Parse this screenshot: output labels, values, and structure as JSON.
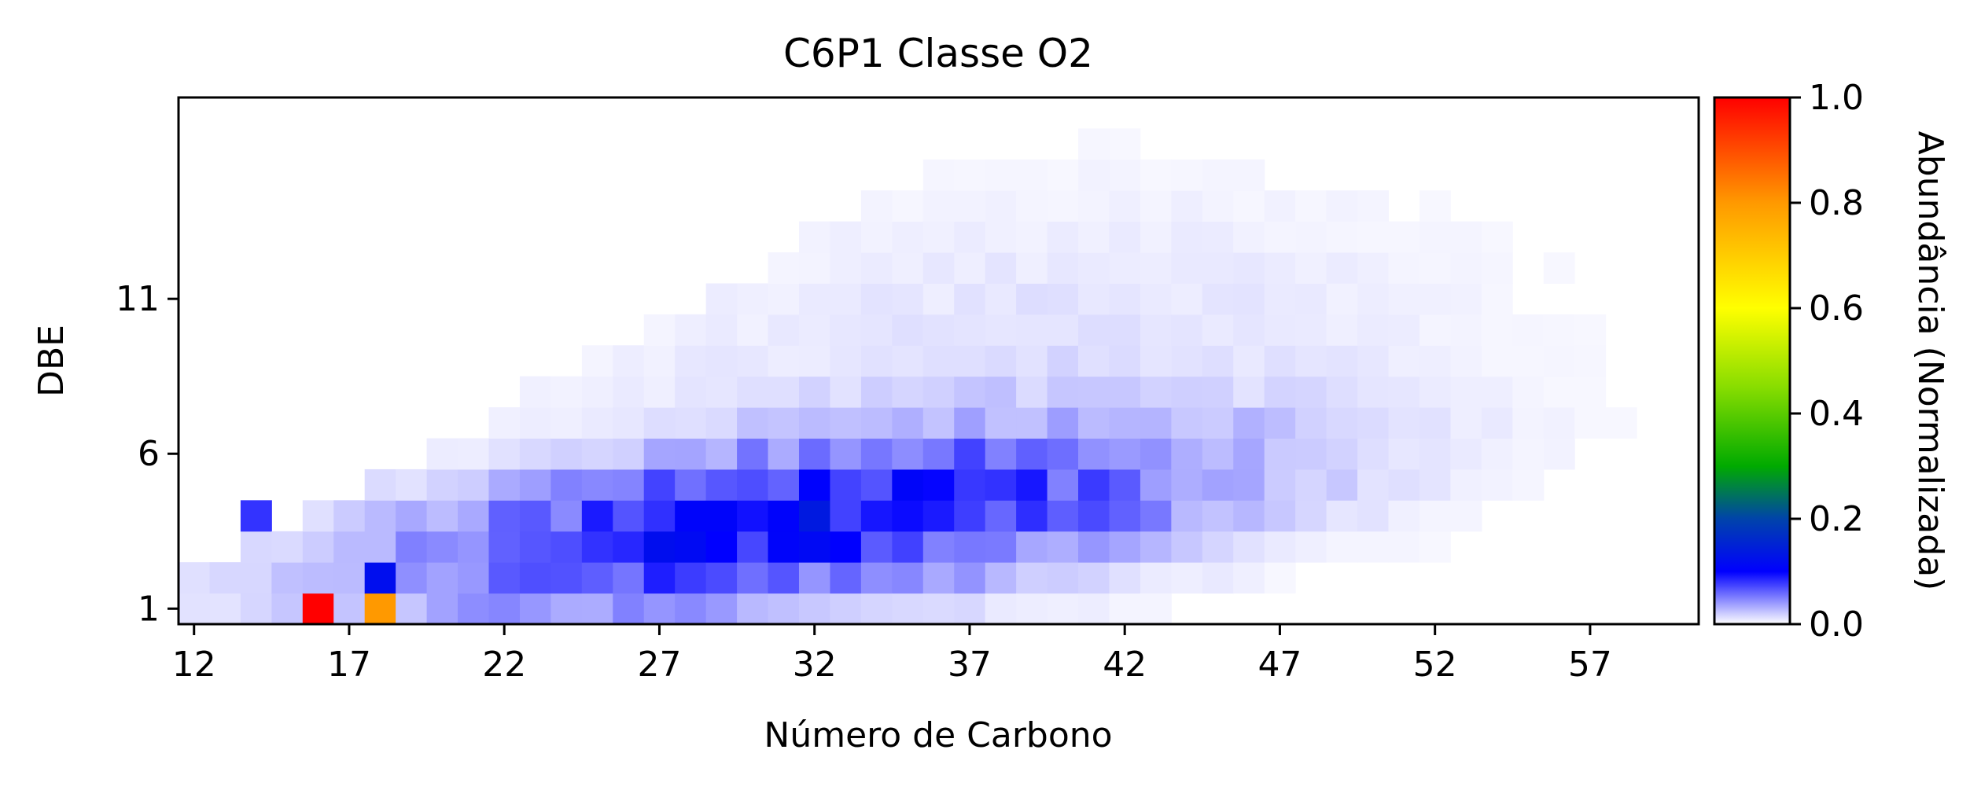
{
  "chart_data": {
    "type": "heatmap",
    "title": "C6P1 Classe O2",
    "xlabel": "Número de Carbono",
    "ylabel": "DBE",
    "colorbar_label": "Abundância (Normalizada)",
    "xlim": [
      11.5,
      60.5
    ],
    "ylim": [
      0.5,
      17.5
    ],
    "x_ticks": [
      12,
      17,
      22,
      27,
      32,
      37,
      42,
      47,
      52,
      57
    ],
    "y_ticks": [
      1,
      6,
      11
    ],
    "colorbar_ticks": [
      0.0,
      0.2,
      0.4,
      0.6,
      0.8,
      1.0
    ],
    "colorbar_tick_labels": [
      "0.0",
      "0.2",
      "0.4",
      "0.6",
      "0.8",
      "1.0"
    ],
    "colorbar_range": [
      0,
      1
    ],
    "colormap": [
      {
        "pos": 0.0,
        "color": "#ffffff"
      },
      {
        "pos": 0.1,
        "color": "#0000ff"
      },
      {
        "pos": 0.2,
        "color": "#0044aa"
      },
      {
        "pos": 0.3,
        "color": "#00aa00"
      },
      {
        "pos": 0.45,
        "color": "#88dd00"
      },
      {
        "pos": 0.6,
        "color": "#ffff00"
      },
      {
        "pos": 0.8,
        "color": "#ff9900"
      },
      {
        "pos": 1.0,
        "color": "#ff0000"
      }
    ],
    "grid": false,
    "special_cells": [
      {
        "x": 16,
        "y": 1,
        "value": 1.0
      },
      {
        "x": 18,
        "y": 1,
        "value": 0.8
      },
      {
        "x": 18,
        "y": 2,
        "value": 0.12
      },
      {
        "x": 14,
        "y": 4,
        "value": 0.08
      }
    ],
    "x_range": [
      12,
      60
    ],
    "y_range": [
      1,
      17
    ]
  }
}
